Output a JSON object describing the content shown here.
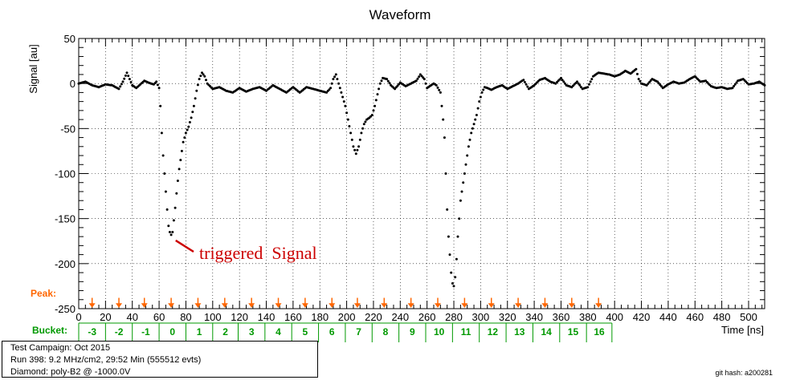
{
  "chart_data": {
    "type": "scatter",
    "title": "Waveform",
    "xlabel": "Time [ns]",
    "ylabel": "Signal [au]",
    "xlim": [
      0,
      512
    ],
    "ylim": [
      -250,
      50
    ],
    "x_ticks": [
      0,
      20,
      40,
      60,
      80,
      100,
      120,
      140,
      160,
      180,
      200,
      220,
      240,
      260,
      280,
      300,
      320,
      340,
      360,
      380,
      400,
      420,
      440,
      460,
      480,
      500
    ],
    "y_ticks": [
      50,
      0,
      -50,
      -100,
      -150,
      -200,
      -250
    ],
    "grid": true,
    "marker_color": "#000000",
    "peak_label": "Peak:",
    "peak_color": "#ff6600",
    "peak_markers_x": [
      10,
      30,
      49,
      69,
      89,
      109,
      129,
      149,
      169,
      189,
      208,
      228,
      248,
      268,
      288,
      308,
      328,
      348,
      368,
      388
    ],
    "bucket_label": "Bucket:",
    "bucket_color": "#009900",
    "buckets": [
      {
        "label": "-3",
        "x0": 0,
        "x1": 20
      },
      {
        "label": "-2",
        "x0": 20,
        "x1": 40
      },
      {
        "label": "-1",
        "x0": 40,
        "x1": 60
      },
      {
        "label": "0",
        "x0": 60,
        "x1": 80
      },
      {
        "label": "1",
        "x0": 80,
        "x1": 100
      },
      {
        "label": "2",
        "x0": 100,
        "x1": 119
      },
      {
        "label": "3",
        "x0": 119,
        "x1": 139
      },
      {
        "label": "4",
        "x0": 139,
        "x1": 159
      },
      {
        "label": "5",
        "x0": 159,
        "x1": 179
      },
      {
        "label": "6",
        "x0": 179,
        "x1": 199
      },
      {
        "label": "7",
        "x0": 199,
        "x1": 219
      },
      {
        "label": "8",
        "x0": 219,
        "x1": 239
      },
      {
        "label": "9",
        "x0": 239,
        "x1": 259
      },
      {
        "label": "10",
        "x0": 259,
        "x1": 279
      },
      {
        "label": "11",
        "x0": 279,
        "x1": 299
      },
      {
        "label": "12",
        "x0": 299,
        "x1": 319
      },
      {
        "label": "13",
        "x0": 319,
        "x1": 339
      },
      {
        "label": "14",
        "x0": 339,
        "x1": 359
      },
      {
        "label": "15",
        "x0": 359,
        "x1": 379
      },
      {
        "label": "16",
        "x0": 379,
        "x1": 398
      }
    ],
    "annotation": {
      "text": "triggered  Signal",
      "color": "#cc0000",
      "point_x": 70,
      "point_y": -168
    },
    "waveform": [
      [
        0,
        0
      ],
      [
        5,
        2
      ],
      [
        10,
        -2
      ],
      [
        15,
        -4
      ],
      [
        20,
        -1
      ],
      [
        25,
        -2
      ],
      [
        30,
        -6
      ],
      [
        33,
        2
      ],
      [
        36,
        12
      ],
      [
        40,
        -2
      ],
      [
        43,
        -5
      ],
      [
        46,
        -1
      ],
      [
        49,
        3
      ],
      [
        52,
        1
      ],
      [
        56,
        -1
      ],
      [
        58,
        2
      ],
      [
        60,
        -5
      ],
      [
        61,
        -25
      ],
      [
        62,
        -55
      ],
      [
        63,
        -80
      ],
      [
        64,
        -100
      ],
      [
        65,
        -120
      ],
      [
        66,
        -140
      ],
      [
        67,
        -158
      ],
      [
        68,
        -165
      ],
      [
        69,
        -168
      ],
      [
        70,
        -165
      ],
      [
        71,
        -152
      ],
      [
        72,
        -138
      ],
      [
        73,
        -122
      ],
      [
        74,
        -108
      ],
      [
        75,
        -95
      ],
      [
        76,
        -85
      ],
      [
        77,
        -75
      ],
      [
        78,
        -65
      ],
      [
        80,
        -55
      ],
      [
        82,
        -48
      ],
      [
        84,
        -38
      ],
      [
        86,
        -25
      ],
      [
        88,
        -8
      ],
      [
        90,
        5
      ],
      [
        92,
        12
      ],
      [
        94,
        8
      ],
      [
        96,
        0
      ],
      [
        100,
        -6
      ],
      [
        105,
        -4
      ],
      [
        110,
        -8
      ],
      [
        115,
        -10
      ],
      [
        120,
        -5
      ],
      [
        125,
        -9
      ],
      [
        130,
        -6
      ],
      [
        135,
        -4
      ],
      [
        140,
        -8
      ],
      [
        145,
        -2
      ],
      [
        150,
        -6
      ],
      [
        155,
        -10
      ],
      [
        160,
        -4
      ],
      [
        165,
        -10
      ],
      [
        170,
        -4
      ],
      [
        175,
        -6
      ],
      [
        180,
        -8
      ],
      [
        185,
        -10
      ],
      [
        188,
        -5
      ],
      [
        190,
        5
      ],
      [
        192,
        10
      ],
      [
        195,
        -5
      ],
      [
        197,
        -15
      ],
      [
        199,
        -25
      ],
      [
        201,
        -40
      ],
      [
        203,
        -55
      ],
      [
        205,
        -70
      ],
      [
        207,
        -78
      ],
      [
        209,
        -70
      ],
      [
        211,
        -55
      ],
      [
        213,
        -45
      ],
      [
        215,
        -40
      ],
      [
        217,
        -38
      ],
      [
        219,
        -35
      ],
      [
        221,
        -25
      ],
      [
        223,
        -12
      ],
      [
        225,
        0
      ],
      [
        227,
        6
      ],
      [
        230,
        5
      ],
      [
        233,
        -2
      ],
      [
        236,
        -6
      ],
      [
        240,
        1
      ],
      [
        244,
        -3
      ],
      [
        248,
        0
      ],
      [
        252,
        3
      ],
      [
        255,
        10
      ],
      [
        258,
        5
      ],
      [
        260,
        -5
      ],
      [
        262,
        -3
      ],
      [
        265,
        0
      ],
      [
        267,
        -2
      ],
      [
        270,
        -10
      ],
      [
        272,
        -40
      ],
      [
        273,
        -60
      ],
      [
        274,
        -100
      ],
      [
        275,
        -140
      ],
      [
        276,
        -170
      ],
      [
        277,
        -190
      ],
      [
        278,
        -210
      ],
      [
        279,
        -222
      ],
      [
        280,
        -225
      ],
      [
        281,
        -215
      ],
      [
        282,
        -195
      ],
      [
        283,
        -170
      ],
      [
        284,
        -150
      ],
      [
        285,
        -130
      ],
      [
        287,
        -110
      ],
      [
        289,
        -90
      ],
      [
        291,
        -70
      ],
      [
        293,
        -55
      ],
      [
        295,
        -45
      ],
      [
        297,
        -35
      ],
      [
        299,
        -20
      ],
      [
        301,
        -10
      ],
      [
        303,
        -4
      ],
      [
        305,
        -5
      ],
      [
        308,
        -7
      ],
      [
        312,
        -4
      ],
      [
        316,
        -2
      ],
      [
        320,
        -6
      ],
      [
        324,
        -3
      ],
      [
        328,
        0
      ],
      [
        332,
        4
      ],
      [
        336,
        -6
      ],
      [
        340,
        -2
      ],
      [
        344,
        4
      ],
      [
        348,
        6
      ],
      [
        352,
        2
      ],
      [
        356,
        0
      ],
      [
        360,
        6
      ],
      [
        364,
        -2
      ],
      [
        368,
        -4
      ],
      [
        372,
        2
      ],
      [
        376,
        -6
      ],
      [
        380,
        -4
      ],
      [
        384,
        8
      ],
      [
        388,
        12
      ],
      [
        392,
        11
      ],
      [
        396,
        10
      ],
      [
        400,
        8
      ],
      [
        404,
        10
      ],
      [
        408,
        14
      ],
      [
        412,
        11
      ],
      [
        416,
        16
      ],
      [
        418,
        5
      ],
      [
        420,
        0
      ],
      [
        424,
        -2
      ],
      [
        428,
        5
      ],
      [
        432,
        2
      ],
      [
        436,
        -5
      ],
      [
        440,
        -1
      ],
      [
        444,
        2
      ],
      [
        448,
        0
      ],
      [
        452,
        1
      ],
      [
        456,
        5
      ],
      [
        460,
        8
      ],
      [
        464,
        2
      ],
      [
        468,
        3
      ],
      [
        472,
        -3
      ],
      [
        476,
        -5
      ],
      [
        480,
        -4
      ],
      [
        484,
        -6
      ],
      [
        488,
        -5
      ],
      [
        492,
        3
      ],
      [
        496,
        5
      ],
      [
        500,
        -1
      ],
      [
        504,
        0
      ],
      [
        508,
        2
      ],
      [
        512,
        -2
      ]
    ]
  },
  "info": {
    "campaign": "Test Campaign: Oct 2015",
    "run": "Run 398: 9.2 MHz/cm2, 29:52 Min (555512 evts)",
    "diamond": "Diamond: poly-B2 @ -1000.0V"
  },
  "git_hash": "git hash: a200281"
}
